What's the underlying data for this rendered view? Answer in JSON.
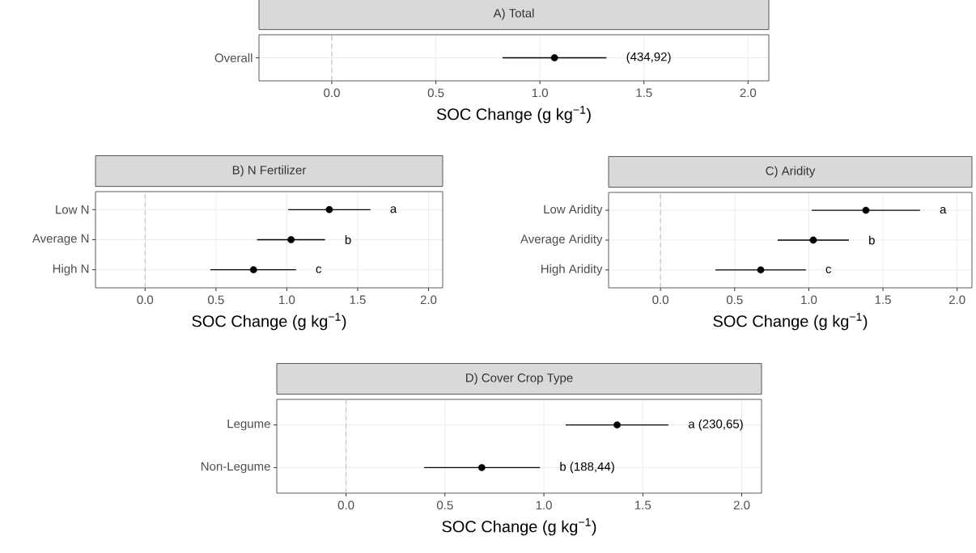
{
  "chart_data": [
    {
      "type": "scatter",
      "orientation": "horizontal",
      "title": "A) Total",
      "xlabel": "SOC Change (g kg$^{−1}$)",
      "categories": [
        "Overall"
      ],
      "values": [
        1.07
      ],
      "errors": [
        [
          0.82,
          1.32
        ]
      ],
      "color": "#000000",
      "marker": "circle",
      "xlim": [
        -0.35,
        2.1
      ],
      "xticks": [
        {
          "value": 0,
          "label": "0.0"
        },
        {
          "value": 0.5,
          "label": "0.5"
        },
        {
          "value": 1,
          "label": "1.0"
        },
        {
          "value": 1.5,
          "label": "1.5"
        },
        {
          "value": 2,
          "label": "2.0"
        }
      ],
      "grid": true,
      "ref_lines": [
        {
          "axis": "x",
          "value": 0,
          "color": "#bdbdbd",
          "line_style": "dashed"
        }
      ],
      "annotations": [
        "(434,92)"
      ]
    },
    {
      "type": "scatter",
      "orientation": "horizontal",
      "title": "B) N Fertilizer",
      "xlabel": "SOC Change (g kg$^{−1}$)",
      "categories": [
        "Low N",
        "Average N",
        "High N"
      ],
      "values": [
        1.3,
        1.03,
        0.765
      ],
      "errors": [
        [
          1.01,
          1.59
        ],
        [
          0.79,
          1.27
        ],
        [
          0.46,
          1.065
        ]
      ],
      "color": "#000000",
      "marker": "circle",
      "xlim": [
        -0.35,
        2.1
      ],
      "xticks": [
        {
          "value": 0,
          "label": "0.0"
        },
        {
          "value": 0.5,
          "label": "0.5"
        },
        {
          "value": 1,
          "label": "1.0"
        },
        {
          "value": 1.5,
          "label": "1.5"
        },
        {
          "value": 2,
          "label": "2.0"
        }
      ],
      "grid": true,
      "ref_lines": [
        {
          "axis": "x",
          "value": 0,
          "color": "#bdbdbd",
          "line_style": "dashed"
        }
      ],
      "annotations": [
        "a",
        "b",
        "c"
      ]
    },
    {
      "type": "scatter",
      "orientation": "horizontal",
      "title": "C) Aridity",
      "xlabel": "SOC Change (g kg$^{−1}$)",
      "categories": [
        "Low Aridity",
        "Average Aridity",
        "High Aridity"
      ],
      "values": [
        1.385,
        1.03,
        0.676
      ],
      "errors": [
        [
          1.02,
          1.75
        ],
        [
          0.79,
          1.27
        ],
        [
          0.37,
          0.98
        ]
      ],
      "color": "#000000",
      "marker": "circle",
      "xlim": [
        -0.35,
        2.1
      ],
      "xticks": [
        {
          "value": 0,
          "label": "0.0"
        },
        {
          "value": 0.5,
          "label": "0.5"
        },
        {
          "value": 1,
          "label": "1.0"
        },
        {
          "value": 1.5,
          "label": "1.5"
        },
        {
          "value": 2,
          "label": "2.0"
        }
      ],
      "grid": true,
      "ref_lines": [
        {
          "axis": "x",
          "value": 0,
          "color": "#bdbdbd",
          "line_style": "dashed"
        }
      ],
      "annotations": [
        "a",
        "b",
        "c"
      ]
    },
    {
      "type": "scatter",
      "orientation": "horizontal",
      "title": "D) Cover Crop Type",
      "xlabel": "SOC Change (g kg$^{−1}$)",
      "categories": [
        "Legume",
        "Non-Legume"
      ],
      "values": [
        1.37,
        0.686
      ],
      "errors": [
        [
          1.11,
          1.63
        ],
        [
          0.395,
          0.98
        ]
      ],
      "color": "#000000",
      "marker": "circle",
      "xlim": [
        -0.35,
        2.1
      ],
      "xticks": [
        {
          "value": 0,
          "label": "0.0"
        },
        {
          "value": 0.5,
          "label": "0.5"
        },
        {
          "value": 1,
          "label": "1.0"
        },
        {
          "value": 1.5,
          "label": "1.5"
        },
        {
          "value": 2,
          "label": "2.0"
        }
      ],
      "grid": true,
      "ref_lines": [
        {
          "axis": "x",
          "value": 0,
          "color": "#bdbdbd",
          "line_style": "dashed"
        }
      ],
      "annotations": [
        "a (230,65)",
        "b (188,44)"
      ]
    }
  ]
}
